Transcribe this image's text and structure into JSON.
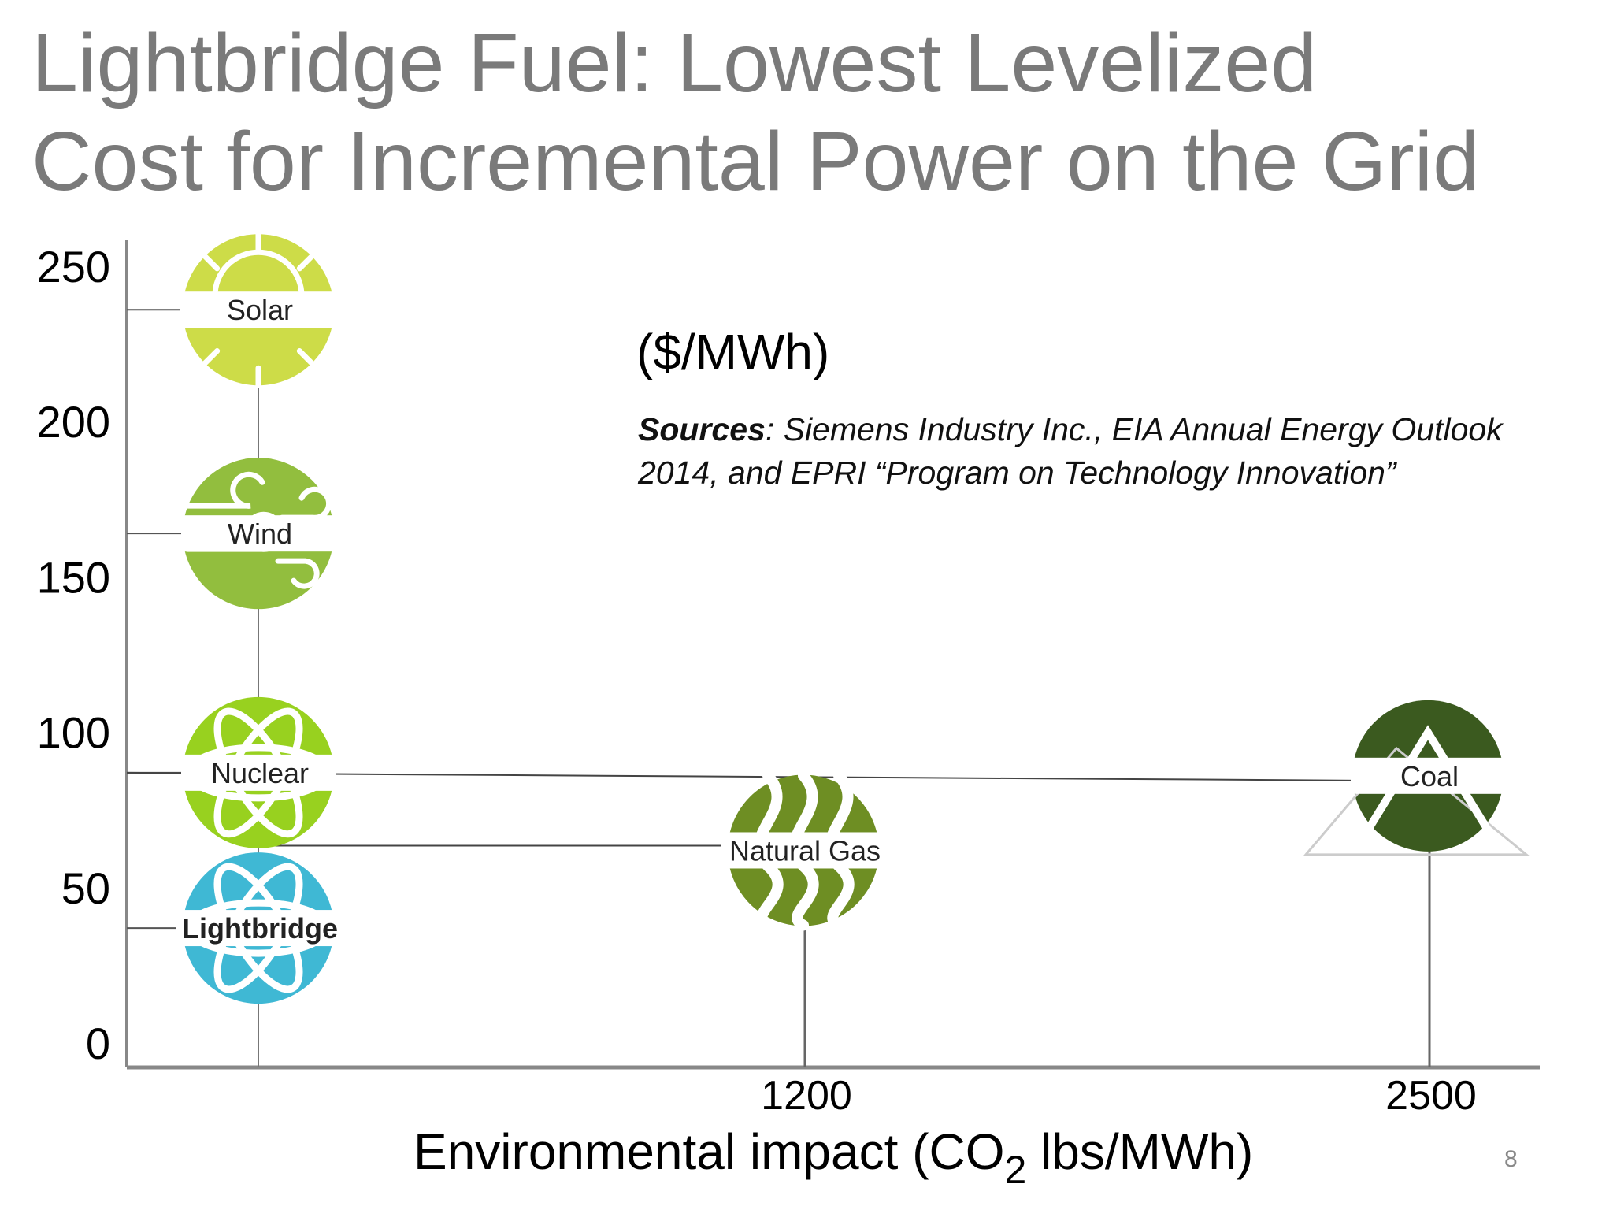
{
  "slide": {
    "title_line1": "Lightbridge Fuel: Lowest Levelized",
    "title_line2": "Cost for Incremental Power on the Grid",
    "unit_label": "($/MWh)",
    "sources_label": "Sources",
    "sources_text": ": Siemens Industry Inc., EIA Annual Energy Outlook 2014, and EPRI “Program on Technology Innovation”",
    "xlabel_pre": "Environmental impact (CO",
    "xlabel_sub": "2",
    "xlabel_post": " lbs/MWh)",
    "page_number": "8"
  },
  "chart_data": {
    "type": "scatter",
    "title": "",
    "ylabel": "($/MWh)",
    "xlabel": "Environmental impact (CO2 lbs/MWh)",
    "ylim": [
      0,
      250
    ],
    "y_ticks": [
      0,
      50,
      100,
      150,
      200,
      250
    ],
    "x_ticks": [
      1200,
      2500
    ],
    "grid": false,
    "points": [
      {
        "label": "Solar",
        "x": 0,
        "y": 236,
        "icon": "sun-icon",
        "color": "#cddc48",
        "bold": false
      },
      {
        "label": "Wind",
        "x": 0,
        "y": 164,
        "icon": "wind-icon",
        "color": "#92be3e",
        "bold": false
      },
      {
        "label": "Nuclear",
        "x": 0,
        "y": 87,
        "icon": "atom-icon",
        "color": "#98d11f",
        "bold": false
      },
      {
        "label": "Lightbridge",
        "x": 0,
        "y": 37,
        "icon": "atom-icon",
        "color": "#3fb8d4",
        "bold": true
      },
      {
        "label": "Natural Gas",
        "x": 1200,
        "y": 62,
        "icon": "flame-icon",
        "color": "#6e8e23",
        "bold": false
      },
      {
        "label": "Coal",
        "x": 2500,
        "y": 86,
        "icon": "mountain-icon",
        "color": "#3b5a1f",
        "bold": false
      }
    ]
  }
}
